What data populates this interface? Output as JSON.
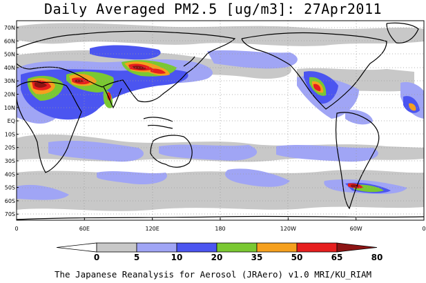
{
  "title": "Daily Averaged PM2.5 [ug/m3]: 27Apr2011",
  "footer": "The Japanese Reanalysis for Aerosol (JRAero) v1.0 MRI/KU_RIAM",
  "lat_labels": [
    "70N",
    "60N",
    "50N",
    "40N",
    "30N",
    "20N",
    "10N",
    "EQ",
    "10S",
    "20S",
    "30S",
    "40S",
    "50S",
    "60S",
    "70S"
  ],
  "lon_labels": [
    "0",
    "60E",
    "120E",
    "180",
    "120W",
    "60W",
    "0"
  ],
  "colorbar": {
    "ticks": [
      "0",
      "5",
      "10",
      "20",
      "35",
      "50",
      "65",
      "80"
    ],
    "colors": [
      "#ffffff",
      "#c8c8c8",
      "#a0a5f5",
      "#4b55f0",
      "#7ac832",
      "#f5a01e",
      "#e61e1e",
      "#8c1414"
    ]
  }
}
